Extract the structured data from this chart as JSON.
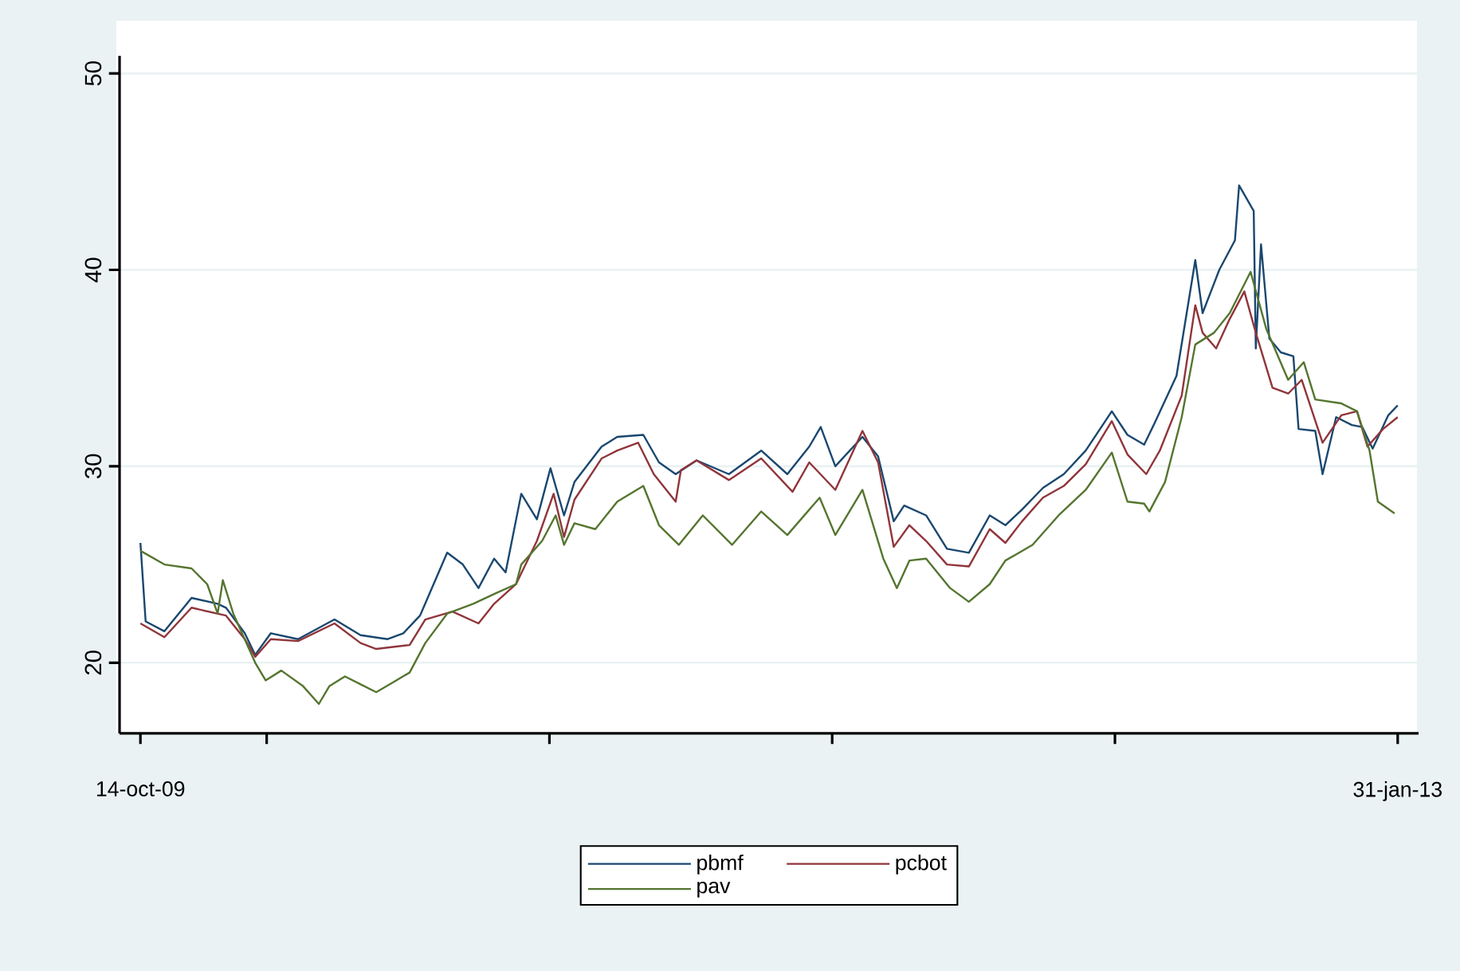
{
  "chart_data": {
    "type": "line",
    "xlim": [
      "2009-09-24",
      "2013-02-20"
    ],
    "ylim": [
      16.4,
      50.9
    ],
    "xticks": [
      {
        "value": "2009-10-14",
        "label": "14-oct-09"
      },
      {
        "value": "2010-02-12",
        "label": null
      },
      {
        "value": "2010-11-10",
        "label": null
      },
      {
        "value": "2011-08-08",
        "label": null
      },
      {
        "value": "2012-05-05",
        "label": null
      },
      {
        "value": "2013-01-31",
        "label": "31-jan-13"
      }
    ],
    "yticks": [
      20,
      30,
      40,
      50
    ],
    "grid": "y",
    "legend": "bottom",
    "line_style": "solid",
    "series": [
      {
        "name": "pbmf",
        "color": "#1a476f",
        "x": [
          "2009-10-14",
          "2009-10-19",
          "2009-11-06",
          "2009-12-02",
          "2009-12-27",
          "2010-01-04",
          "2010-01-22",
          "2010-02-01",
          "2010-02-16",
          "2010-03-14",
          "2010-04-18",
          "2010-05-13",
          "2010-06-08",
          "2010-06-23",
          "2010-07-09",
          "2010-08-04",
          "2010-08-19",
          "2010-09-03",
          "2010-09-18",
          "2010-09-29",
          "2010-10-14",
          "2010-10-29",
          "2010-11-11",
          "2010-11-24",
          "2010-12-04",
          "2010-12-30",
          "2011-01-14",
          "2011-02-08",
          "2011-02-23",
          "2011-03-11",
          "2011-03-31",
          "2011-05-01",
          "2011-06-01",
          "2011-06-26",
          "2011-07-17",
          "2011-07-28",
          "2011-08-11",
          "2011-09-06",
          "2011-09-21",
          "2011-10-06",
          "2011-10-16",
          "2011-11-06",
          "2011-11-26",
          "2011-12-17",
          "2012-01-06",
          "2012-01-21",
          "2012-02-06",
          "2012-02-26",
          "2012-03-17",
          "2012-04-07",
          "2012-05-02",
          "2012-05-17",
          "2012-06-02",
          "2012-06-12",
          "2012-07-03",
          "2012-07-21",
          "2012-07-28",
          "2012-08-13",
          "2012-08-28",
          "2012-09-01",
          "2012-09-15",
          "2012-09-17",
          "2012-09-22",
          "2012-09-30",
          "2012-10-11",
          "2012-10-23",
          "2012-10-28",
          "2012-11-13",
          "2012-11-20",
          "2012-12-03",
          "2012-12-18",
          "2012-12-28",
          "2013-01-07",
          "2013-01-22",
          "2013-01-31"
        ],
        "values": [
          26.1,
          22.1,
          21.6,
          23.3,
          23.0,
          22.8,
          21.5,
          20.4,
          21.5,
          21.2,
          22.2,
          21.4,
          21.2,
          21.5,
          22.4,
          25.6,
          25.0,
          23.8,
          25.3,
          24.6,
          28.6,
          27.3,
          29.9,
          27.5,
          29.2,
          31.0,
          31.5,
          31.6,
          30.2,
          29.6,
          30.3,
          29.6,
          30.8,
          29.6,
          31.0,
          32.0,
          30.0,
          31.5,
          30.5,
          27.2,
          28.0,
          27.5,
          25.8,
          25.6,
          27.5,
          27.0,
          27.8,
          28.9,
          29.6,
          30.8,
          32.8,
          31.6,
          31.1,
          32.2,
          34.6,
          40.5,
          37.8,
          40.0,
          41.5,
          44.3,
          43.0,
          36.0,
          41.3,
          36.5,
          35.8,
          35.6,
          31.9,
          31.8,
          29.6,
          32.5,
          32.1,
          32.0,
          30.9,
          32.6,
          33.1
        ]
      },
      {
        "name": "pcbot",
        "color": "#90353b",
        "x": [
          "2009-10-14",
          "2009-11-06",
          "2009-12-02",
          "2010-01-04",
          "2010-01-22",
          "2010-02-01",
          "2010-02-16",
          "2010-03-14",
          "2010-04-18",
          "2010-05-13",
          "2010-05-28",
          "2010-06-29",
          "2010-07-14",
          "2010-08-09",
          "2010-09-03",
          "2010-09-18",
          "2010-10-09",
          "2010-10-29",
          "2010-11-14",
          "2010-11-24",
          "2010-12-04",
          "2010-12-30",
          "2011-01-14",
          "2011-02-03",
          "2011-02-18",
          "2011-03-11",
          "2011-03-16",
          "2011-03-31",
          "2011-05-01",
          "2011-06-01",
          "2011-07-01",
          "2011-07-17",
          "2011-08-11",
          "2011-09-06",
          "2011-09-21",
          "2011-10-06",
          "2011-10-21",
          "2011-11-06",
          "2011-11-26",
          "2011-12-17",
          "2012-01-06",
          "2012-01-21",
          "2012-02-06",
          "2012-02-26",
          "2012-03-17",
          "2012-04-07",
          "2012-05-02",
          "2012-05-17",
          "2012-06-04",
          "2012-06-17",
          "2012-07-08",
          "2012-07-21",
          "2012-07-28",
          "2012-08-10",
          "2012-08-23",
          "2012-09-06",
          "2012-09-17",
          "2012-10-03",
          "2012-10-18",
          "2012-10-31",
          "2012-11-20",
          "2012-12-08",
          "2012-12-23",
          "2013-01-02",
          "2013-01-17",
          "2013-01-31"
        ],
        "values": [
          22.0,
          21.3,
          22.8,
          22.4,
          21.2,
          20.3,
          21.2,
          21.1,
          22.0,
          21.0,
          20.7,
          20.9,
          22.2,
          22.6,
          22.0,
          23.0,
          24.0,
          26.2,
          28.6,
          26.4,
          28.3,
          30.4,
          30.8,
          31.2,
          29.6,
          28.2,
          29.8,
          30.3,
          29.3,
          30.4,
          28.7,
          30.2,
          28.8,
          31.8,
          30.2,
          25.9,
          27.0,
          26.2,
          25.0,
          24.9,
          26.8,
          26.1,
          27.2,
          28.4,
          29.0,
          30.1,
          32.3,
          30.6,
          29.6,
          30.8,
          33.6,
          38.2,
          36.8,
          36.0,
          37.5,
          38.9,
          36.8,
          34.0,
          33.7,
          34.4,
          31.2,
          32.6,
          32.8,
          31.0,
          31.9,
          32.5
        ]
      },
      {
        "name": "pav",
        "color": "#55752f",
        "x": [
          "2009-10-14",
          "2009-11-06",
          "2009-12-02",
          "2009-12-17",
          "2009-12-27",
          "2010-01-01",
          "2010-01-11",
          "2010-02-01",
          "2010-02-11",
          "2010-02-26",
          "2010-03-19",
          "2010-04-03",
          "2010-04-13",
          "2010-04-28",
          "2010-05-13",
          "2010-05-28",
          "2010-06-13",
          "2010-06-29",
          "2010-07-14",
          "2010-08-04",
          "2010-08-29",
          "2010-09-18",
          "2010-10-09",
          "2010-10-14",
          "2010-11-03",
          "2010-11-16",
          "2010-11-24",
          "2010-12-04",
          "2010-12-24",
          "2011-01-14",
          "2011-02-08",
          "2011-02-23",
          "2011-03-14",
          "2011-04-06",
          "2011-05-04",
          "2011-06-01",
          "2011-06-26",
          "2011-07-27",
          "2011-08-11",
          "2011-09-06",
          "2011-09-26",
          "2011-10-09",
          "2011-10-21",
          "2011-11-06",
          "2011-11-29",
          "2011-12-17",
          "2012-01-06",
          "2012-01-21",
          "2012-02-16",
          "2012-03-12",
          "2012-04-07",
          "2012-05-02",
          "2012-05-17",
          "2012-06-02",
          "2012-06-07",
          "2012-06-22",
          "2012-07-08",
          "2012-07-21",
          "2012-08-08",
          "2012-08-23",
          "2012-09-12",
          "2012-09-27",
          "2012-10-18",
          "2012-11-02",
          "2012-11-13",
          "2012-12-08",
          "2012-12-23",
          "2013-01-04",
          "2013-01-12",
          "2013-01-28"
        ],
        "values": [
          25.7,
          25.0,
          24.8,
          24.0,
          22.5,
          24.2,
          22.5,
          20.0,
          19.1,
          19.6,
          18.8,
          17.9,
          18.8,
          19.3,
          18.9,
          18.5,
          19.0,
          19.5,
          21.0,
          22.5,
          23.0,
          23.5,
          24.0,
          25.0,
          26.2,
          27.5,
          26.0,
          27.1,
          26.8,
          28.2,
          29.0,
          27.0,
          26.0,
          27.5,
          26.0,
          27.7,
          26.5,
          28.4,
          26.5,
          28.8,
          25.3,
          23.8,
          25.2,
          25.3,
          23.8,
          23.1,
          24.0,
          25.2,
          26.0,
          27.5,
          28.8,
          30.7,
          28.2,
          28.1,
          27.7,
          29.2,
          32.5,
          36.2,
          36.8,
          37.8,
          39.9,
          37.0,
          34.4,
          35.3,
          33.4,
          33.2,
          32.8,
          30.8,
          28.2,
          27.6
        ]
      }
    ]
  }
}
